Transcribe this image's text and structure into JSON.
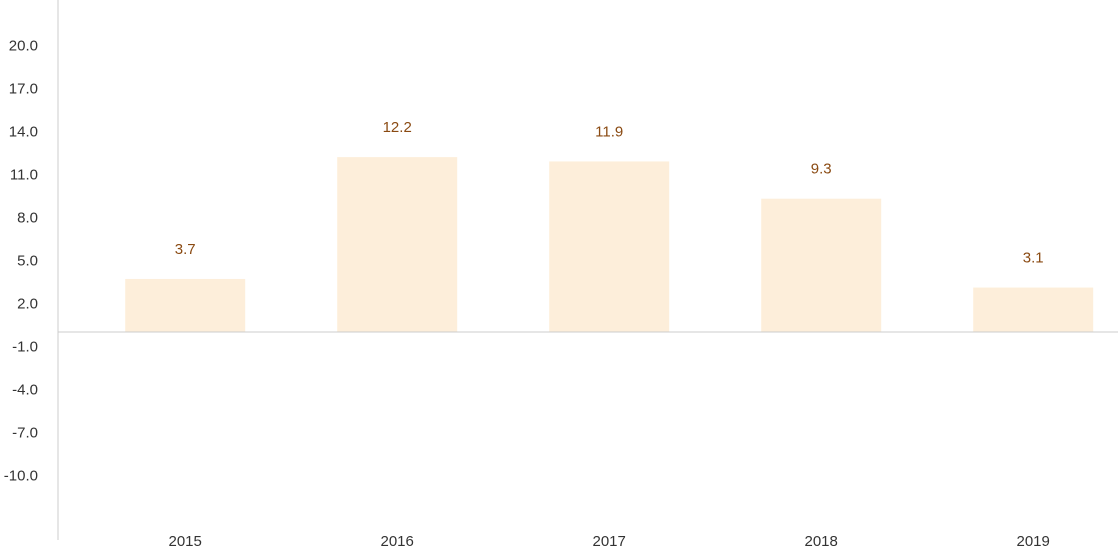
{
  "chart_data": {
    "type": "bar",
    "categories": [
      "2015",
      "2016",
      "2017",
      "2018",
      "2019"
    ],
    "values": [
      3.7,
      12.2,
      11.9,
      9.3,
      3.1
    ],
    "data_labels": [
      "3.7",
      "12.2",
      "11.9",
      "9.3",
      "3.1"
    ],
    "y_ticks": [
      -10,
      -7,
      -4,
      -1,
      2,
      5,
      8,
      11,
      14,
      17,
      20
    ],
    "y_tick_labels": [
      "-10.0",
      "-7.0",
      "-4.0",
      "-1.0",
      "2.0",
      "5.0",
      "8.0",
      "11.0",
      "14.0",
      "17.0",
      "20.0"
    ],
    "ylim": [
      -12.5,
      23
    ],
    "grid": false,
    "colors": {
      "bar": "#fdeeda",
      "data_label": "#8a4a12",
      "axis": "#cccccc"
    }
  }
}
